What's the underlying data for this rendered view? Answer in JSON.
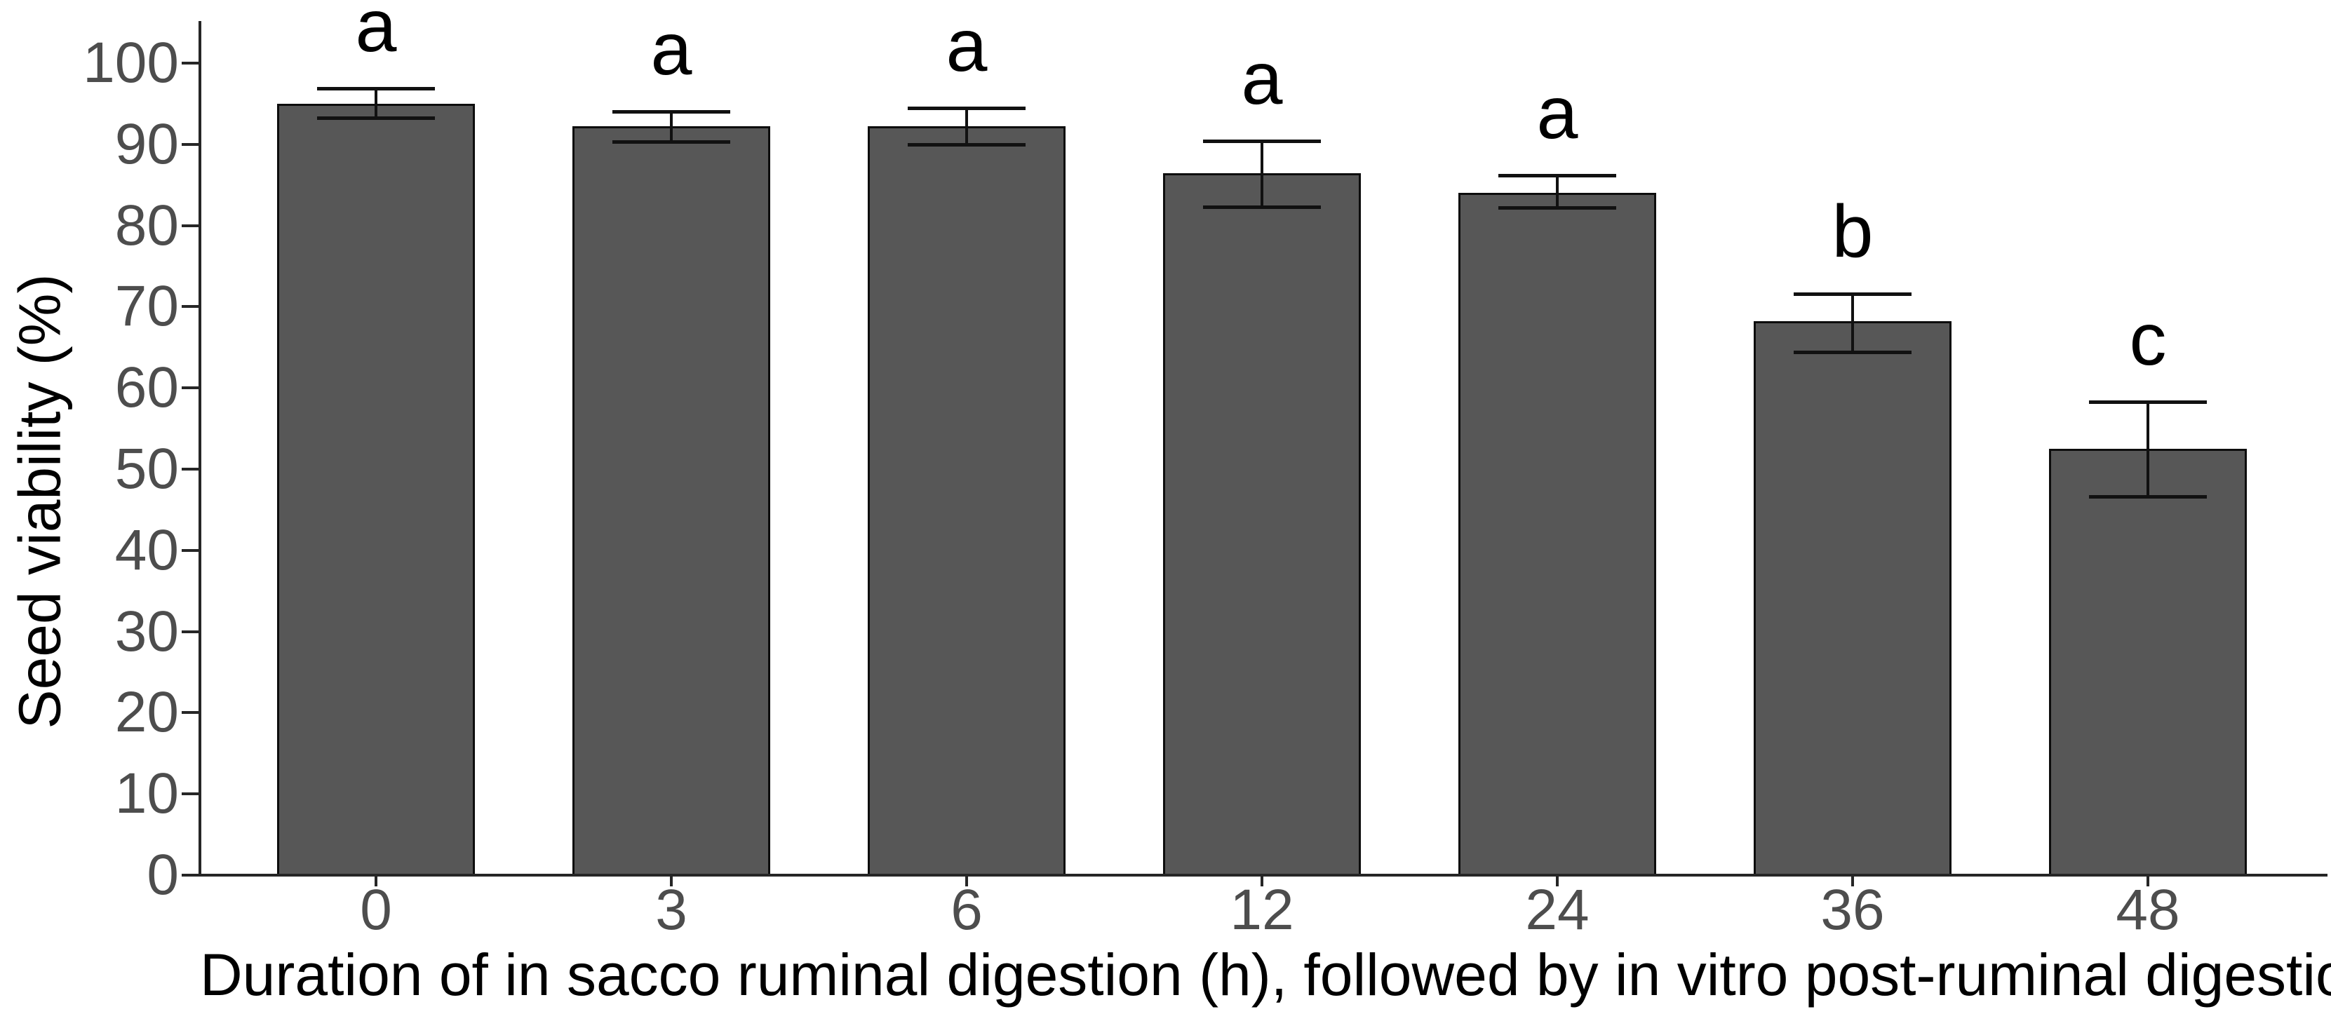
{
  "chart_data": {
    "type": "bar",
    "title": "",
    "xlabel": "Duration of in sacco ruminal digestion (h), followed by in vitro post-ruminal digestion",
    "ylabel": "Seed viability (%)",
    "categories": [
      "0",
      "3",
      "6",
      "12",
      "24",
      "36",
      "48"
    ],
    "values": [
      95.0,
      92.2,
      92.2,
      86.4,
      84.0,
      68.2,
      52.5
    ],
    "error_upper": [
      96.9,
      94.0,
      94.5,
      90.4,
      86.2,
      71.6,
      58.3
    ],
    "error_lower": [
      93.3,
      90.3,
      90.0,
      82.3,
      82.2,
      64.4,
      46.6
    ],
    "sig_letters": [
      "a",
      "a",
      "a",
      "a",
      "a",
      "b",
      "c"
    ],
    "ylim": [
      0,
      100
    ],
    "yticks": [
      0,
      10,
      20,
      30,
      40,
      50,
      60,
      70,
      80,
      90,
      100
    ],
    "grid": false,
    "legend": null,
    "colors": {
      "bar_fill": "#575757",
      "bar_outline": "#0d0d0d",
      "error_bar": "#111111",
      "axis_line": "#262626",
      "tick_label": "#4d4d4d",
      "axis_title": "#000000",
      "sig_letter": "#000000",
      "background": "#ffffff"
    }
  }
}
